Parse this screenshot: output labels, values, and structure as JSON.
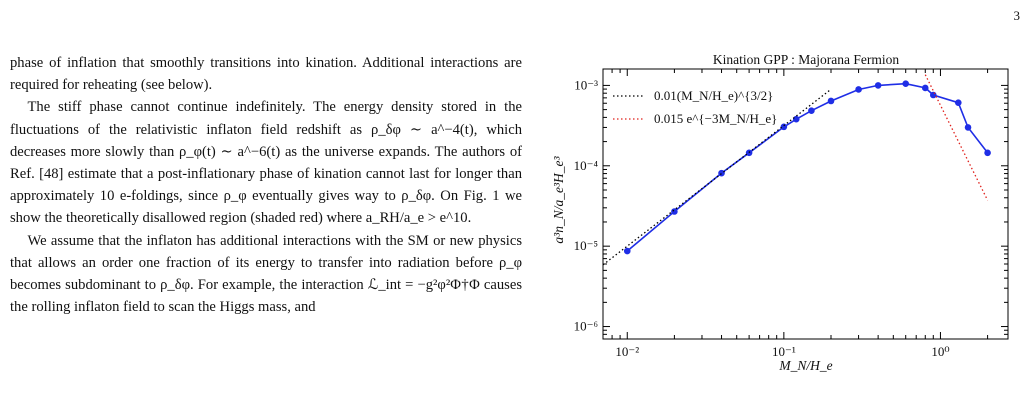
{
  "page_number": "3",
  "text_paragraphs": [
    {
      "indent": false,
      "text": "phase of inflation that smoothly transitions into kination. Additional interactions are required for reheating (see below)."
    },
    {
      "indent": true,
      "text": "The stiff phase cannot continue indefinitely. The energy density stored in the fluctuations of the relativistic inflaton field redshift as ρ_δφ ∼ a^−4(t), which decreases more slowly than ρ_φ(t) ∼ a^−6(t) as the universe expands. The authors of Ref. [48] estimate that a post-inflationary phase of kination cannot last for longer than approximately 10 e-foldings, since ρ_φ eventually gives way to ρ_δφ. On Fig. 1 we show the theoretically disallowed region (shaded red) where a_RH/a_e > e^10."
    },
    {
      "indent": true,
      "text": "We assume that the inflaton has additional interactions with the SM or new physics that allows an order one fraction of its energy to transfer into radiation before ρ_φ becomes subdominant to ρ_δφ. For example, the interaction ℒ_int = −g²φ²Φ†Φ causes the rolling inflaton field to scan the Higgs mass, and"
    }
  ],
  "chart_data": {
    "type": "line",
    "title": "Kination GPP :  Majorana Fermion",
    "xlabel": "M_N/H_e",
    "ylabel": "a³n_N/a_e³H_e³",
    "xscale": "log",
    "yscale": "log",
    "xlim": [
      0.007,
      2.7
    ],
    "ylim": [
      7e-07,
      0.0016
    ],
    "x_tick_labels": [
      "10⁻²",
      "10⁻¹",
      "10⁰"
    ],
    "y_tick_labels": [
      "10⁻³",
      "10⁻⁴",
      "10⁻⁵",
      "10⁻⁶"
    ],
    "legend_position": "top-left",
    "series": [
      {
        "name": "",
        "style": "solid-markers",
        "color": "#1f2ee6",
        "x": [
          0.01,
          0.02,
          0.04,
          0.06,
          0.1,
          0.12,
          0.15,
          0.2,
          0.3,
          0.4,
          0.6,
          0.8,
          0.9,
          1.3,
          1.5,
          2.0
        ],
        "y": [
          8.7e-06,
          2.7e-05,
          8.1e-05,
          0.000145,
          0.000305,
          0.00038,
          0.000485,
          0.00064,
          0.00089,
          0.001,
          0.00105,
          0.00093,
          0.00076,
          0.00061,
          0.0003,
          0.000145
        ]
      },
      {
        "name": "0.01(M_N/H_e)^{3/2}",
        "style": "dotted",
        "color": "#000000",
        "x": [
          0.007,
          0.2
        ],
        "y": [
          5.86e-06,
          0.000894
        ]
      },
      {
        "name": "0.015 e^{−3M_N/H_e}",
        "style": "dotted",
        "color": "#e0201b",
        "x": [
          0.8,
          2.0
        ],
        "y": [
          0.00136,
          3.72e-05
        ]
      }
    ]
  }
}
